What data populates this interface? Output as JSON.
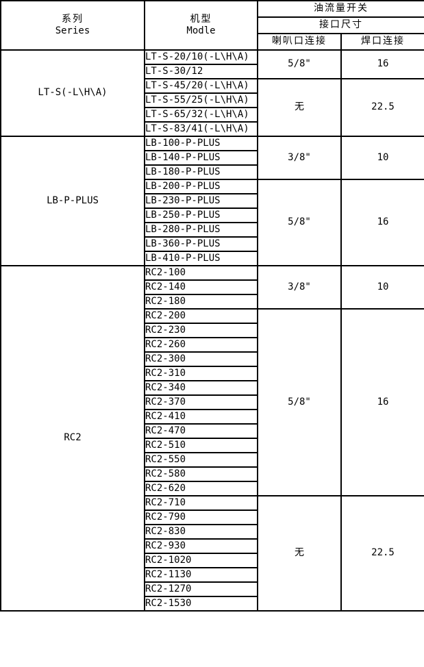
{
  "table": {
    "header": {
      "series_zh": "系列",
      "series_en": "Series",
      "model_zh": "机型",
      "model_en": "Modle",
      "switch_title": "油流量开关",
      "size_title": "接口尺寸",
      "flare_title": "喇叭口连接",
      "weld_title": "焊口连接"
    },
    "colors": {
      "border": "#000000",
      "background": "#ffffff",
      "text": "#000000"
    },
    "sections": [
      {
        "series": "LT-S(-L\\H\\A)",
        "groups": [
          {
            "models": [
              "LT-S-20/10(-L\\H\\A)",
              "LT-S-30/12"
            ],
            "flare": "5/8\"",
            "weld": "16"
          },
          {
            "models": [
              "LT-S-45/20(-L\\H\\A)",
              "LT-S-55/25(-L\\H\\A)",
              "LT-S-65/32(-L\\H\\A)",
              "LT-S-83/41(-L\\H\\A)"
            ],
            "flare": "无",
            "weld": "22.5"
          }
        ]
      },
      {
        "series": "LB-P-PLUS",
        "groups": [
          {
            "models": [
              "LB-100-P-PLUS",
              "LB-140-P-PLUS",
              "LB-180-P-PLUS"
            ],
            "flare": "3/8\"",
            "weld": "10"
          },
          {
            "models": [
              "LB-200-P-PLUS",
              "LB-230-P-PLUS",
              "LB-250-P-PLUS",
              "LB-280-P-PLUS",
              "LB-360-P-PLUS",
              "LB-410-P-PLUS"
            ],
            "flare": "5/8\"",
            "weld": "16"
          }
        ]
      },
      {
        "series": "RC2",
        "groups": [
          {
            "models": [
              "RC2-100",
              "RC2-140",
              "RC2-180"
            ],
            "flare": "3/8\"",
            "weld": "10"
          },
          {
            "models": [
              "RC2-200",
              "RC2-230",
              "RC2-260",
              "RC2-300",
              "RC2-310",
              "RC2-340",
              "RC2-370",
              "RC2-410",
              "RC2-470",
              "RC2-510",
              "RC2-550",
              "RC2-580",
              "RC2-620"
            ],
            "flare": "5/8\"",
            "weld": "16"
          },
          {
            "models": [
              "RC2-710",
              "RC2-790",
              "RC2-830",
              "RC2-930",
              "RC2-1020",
              "RC2-1130",
              "RC2-1270",
              "RC2-1530"
            ],
            "flare": "无",
            "weld": "22.5"
          }
        ]
      }
    ]
  }
}
